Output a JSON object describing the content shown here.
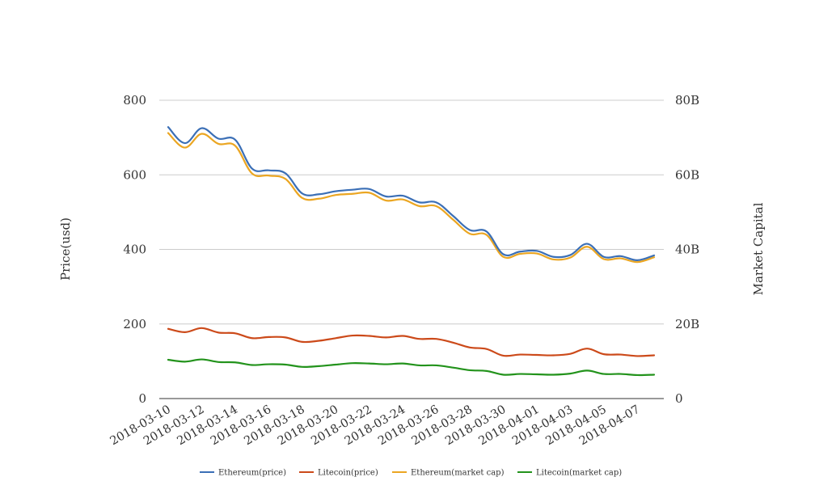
{
  "chart_data": {
    "type": "line",
    "title": "",
    "x": [
      "2018-03-10",
      "2018-03-11",
      "2018-03-12",
      "2018-03-13",
      "2018-03-14",
      "2018-03-15",
      "2018-03-16",
      "2018-03-17",
      "2018-03-18",
      "2018-03-19",
      "2018-03-20",
      "2018-03-21",
      "2018-03-22",
      "2018-03-23",
      "2018-03-24",
      "2018-03-25",
      "2018-03-26",
      "2018-03-27",
      "2018-03-28",
      "2018-03-29",
      "2018-03-30",
      "2018-03-31",
      "2018-04-01",
      "2018-04-02",
      "2018-04-03",
      "2018-04-04",
      "2018-04-05",
      "2018-04-06",
      "2018-04-07",
      "2018-04-08"
    ],
    "x_tick_labels": [
      "2018-03-10",
      "2018-03-12",
      "2018-03-14",
      "2018-03-16",
      "2018-03-18",
      "2018-03-20",
      "2018-03-22",
      "2018-03-24",
      "2018-03-26",
      "2018-03-28",
      "2018-03-30",
      "2018-04-01",
      "2018-04-03",
      "2018-04-05",
      "2018-04-07"
    ],
    "ylabel_left": "Price(usd)",
    "ylabel_right": "Market Capital",
    "ylim_left": [
      0,
      800
    ],
    "ylim_right": [
      0,
      80000000000
    ],
    "yticks_left": [
      "0",
      "200",
      "400",
      "600",
      "800"
    ],
    "yticks_right": [
      "0",
      "20B",
      "40B",
      "60B",
      "80B"
    ],
    "grid": true,
    "legend_position": "bottom",
    "series": [
      {
        "name": "Ethereum(price)",
        "axis": "left",
        "color": "#3b6fb6",
        "values": [
          728,
          685,
          725,
          697,
          694,
          617,
          612,
          604,
          550,
          548,
          556,
          560,
          562,
          542,
          544,
          526,
          526,
          490,
          452,
          448,
          387,
          394,
          396,
          380,
          385,
          415,
          380,
          382,
          371,
          384
        ]
      },
      {
        "name": "Litecoin(price)",
        "axis": "left",
        "color": "#cc4a1a",
        "values": [
          187,
          178,
          189,
          177,
          175,
          162,
          165,
          164,
          152,
          155,
          162,
          169,
          168,
          164,
          168,
          160,
          160,
          150,
          137,
          133,
          115,
          118,
          117,
          116,
          120,
          134,
          119,
          118,
          114,
          116
        ]
      },
      {
        "name": "Ethereum(market cap)",
        "axis": "right",
        "color": "#eba622",
        "values": [
          71200000000,
          67300000000,
          71000000000,
          68300000000,
          67800000000,
          60400000000,
          59800000000,
          58900000000,
          53800000000,
          53600000000,
          54600000000,
          54900000000,
          55200000000,
          53100000000,
          53400000000,
          51600000000,
          51600000000,
          48000000000,
          44200000000,
          43900000000,
          38000000000,
          38800000000,
          38900000000,
          37300000000,
          37800000000,
          40700000000,
          37400000000,
          37600000000,
          36600000000,
          37900000000
        ]
      },
      {
        "name": "Litecoin(market cap)",
        "axis": "right",
        "color": "#23931c",
        "values": [
          10400000000,
          9900000000,
          10500000000,
          9800000000,
          9700000000,
          9000000000,
          9200000000,
          9100000000,
          8500000000,
          8700000000,
          9100000000,
          9500000000,
          9400000000,
          9200000000,
          9400000000,
          8900000000,
          8900000000,
          8300000000,
          7600000000,
          7400000000,
          6400000000,
          6600000000,
          6500000000,
          6400000000,
          6700000000,
          7500000000,
          6600000000,
          6600000000,
          6300000000,
          6400000000
        ]
      }
    ]
  }
}
